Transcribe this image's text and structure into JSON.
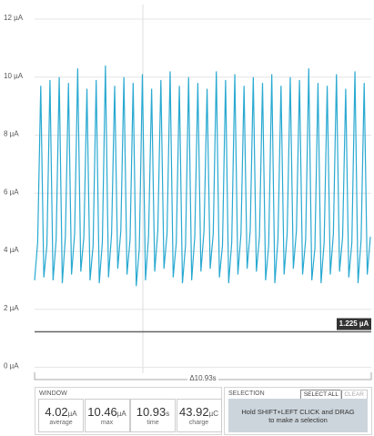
{
  "chart_data": {
    "type": "line",
    "color": "#29a9d1",
    "grid": true,
    "ylim": [
      -0.2,
      12.5
    ],
    "yticks": [
      {
        "value": 0,
        "label": "0 µA"
      },
      {
        "value": 2,
        "label": "2 µA"
      },
      {
        "value": 4,
        "label": "4 µA"
      },
      {
        "value": 6,
        "label": "6 µA"
      },
      {
        "value": 8,
        "label": "8 µA"
      },
      {
        "value": 10,
        "label": "10 µA"
      },
      {
        "value": 12,
        "label": "12 µA"
      }
    ],
    "xlim": [
      0,
      10.93
    ],
    "threshold": {
      "value": 1.225,
      "label": "1.225 µA"
    },
    "x": [
      0,
      0.1,
      0.2,
      0.3,
      0.4,
      0.5,
      0.6,
      0.7,
      0.8,
      0.9,
      1,
      1.1,
      1.2,
      1.3,
      1.4,
      1.5,
      1.6,
      1.7,
      1.8,
      1.9,
      2,
      2.1,
      2.2,
      2.3,
      2.4,
      2.5,
      2.6,
      2.7,
      2.8,
      2.9,
      3,
      3.1,
      3.2,
      3.3,
      3.4,
      3.5,
      3.6,
      3.7,
      3.8,
      3.9,
      4,
      4.1,
      4.2,
      4.3,
      4.4,
      4.5,
      4.6,
      4.7,
      4.8,
      4.9,
      5,
      5.1,
      5.2,
      5.3,
      5.4,
      5.5,
      5.6,
      5.7,
      5.8,
      5.9,
      6,
      6.1,
      6.2,
      6.3,
      6.4,
      6.5,
      6.6,
      6.7,
      6.8,
      6.9,
      7,
      7.1,
      7.2,
      7.3,
      7.4,
      7.5,
      7.6,
      7.7,
      7.8,
      7.9,
      8,
      8.1,
      8.2,
      8.3,
      8.4,
      8.5,
      8.6,
      8.7,
      8.8,
      8.9,
      9,
      9.1,
      9.2,
      9.3,
      9.4,
      9.5,
      9.6,
      9.7,
      9.8,
      9.9,
      10,
      10.1,
      10.2,
      10.3,
      10.4,
      10.5,
      10.6,
      10.7,
      10.8,
      10.9
    ],
    "values": [
      3.0,
      4.3,
      9.7,
      3.1,
      4.2,
      9.9,
      3.0,
      4.4,
      10.0,
      2.9,
      4.5,
      9.8,
      3.2,
      4.6,
      10.3,
      3.3,
      4.5,
      9.6,
      3.0,
      4.2,
      9.9,
      2.9,
      4.3,
      10.4,
      3.1,
      4.6,
      9.7,
      3.4,
      4.7,
      10.0,
      3.2,
      4.4,
      9.8,
      2.8,
      4.1,
      10.1,
      3.0,
      4.5,
      9.6,
      3.3,
      4.7,
      9.9,
      3.4,
      4.6,
      10.2,
      3.1,
      4.3,
      9.7,
      2.9,
      4.2,
      10.0,
      3.0,
      4.5,
      9.8,
      3.3,
      4.7,
      9.6,
      3.4,
      4.6,
      10.2,
      3.1,
      4.2,
      9.9,
      2.9,
      4.3,
      10.1,
      3.2,
      4.6,
      9.7,
      3.4,
      4.7,
      10.0,
      3.3,
      4.5,
      9.8,
      3.0,
      4.2,
      10.1,
      2.9,
      4.4,
      9.7,
      3.2,
      4.6,
      10.0,
      3.4,
      4.7,
      9.9,
      3.2,
      4.4,
      10.3,
      3.0,
      4.1,
      9.8,
      2.9,
      4.3,
      9.7,
      3.2,
      4.6,
      10.1,
      3.3,
      4.5,
      9.6,
      3.1,
      4.3,
      10.2,
      2.9,
      4.4,
      9.8,
      3.2,
      4.5
    ]
  },
  "window": {
    "title": "WINDOW",
    "delta": "Δ10.93s",
    "stats": [
      {
        "value": 4.02,
        "unit": "µA",
        "label": "average"
      },
      {
        "value": 10.46,
        "unit": "µA",
        "label": "max"
      },
      {
        "value": 10.93,
        "unit": "s",
        "label": "time"
      },
      {
        "value": 43.92,
        "unit": "µC",
        "label": "charge"
      }
    ]
  },
  "selection": {
    "title": "SELECTION",
    "buttons": [
      "SELECT ALL",
      "CLEAR"
    ],
    "hint": "Hold SHIFT+LEFT CLICK and DRAG to make a selection"
  }
}
